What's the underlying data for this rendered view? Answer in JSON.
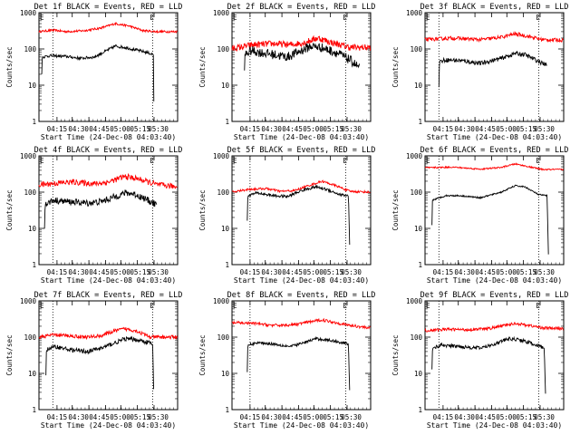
{
  "chart_data": [
    {
      "type": "line",
      "title": "Det 1f BLACK = Events, RED = LLD",
      "xlabel": "Start Time (24-Dec-08 04:03:40)",
      "ylabel": "Counts/sec",
      "x_tick_labels": [
        "04:15",
        "04:30",
        "04:45",
        "05:00",
        "05:15",
        "05:30"
      ],
      "y_tick_labels": [
        "1",
        "10",
        "100",
        "1000"
      ],
      "marker_label": "E",
      "ylim": [
        1,
        1000
      ],
      "log_y": true,
      "series": [
        {
          "color": "#ff0000",
          "points": [
            [
              0,
              300
            ],
            [
              10,
              330
            ],
            [
              20,
              300
            ],
            [
              33,
              320
            ],
            [
              45,
              380
            ],
            [
              55,
              500
            ],
            [
              65,
              430
            ],
            [
              75,
              320
            ],
            [
              85,
              300
            ],
            [
              100,
              300
            ]
          ],
          "noise": 0.03
        },
        {
          "color": "#000000",
          "points": [
            [
              2,
              20
            ],
            [
              2.3,
              60
            ],
            [
              8,
              65
            ],
            [
              20,
              62
            ],
            [
              30,
              55
            ],
            [
              40,
              60
            ],
            [
              50,
              95
            ],
            [
              55,
              120
            ],
            [
              62,
              110
            ],
            [
              75,
              85
            ],
            [
              80,
              75
            ],
            [
              82.5,
              70
            ],
            [
              83,
              1
            ]
          ],
          "noise": 0.04
        }
      ],
      "vlines": [
        10,
        82
      ]
    },
    {
      "type": "line",
      "title": "Det 2f BLACK = Events, RED = LLD",
      "xlabel": "Start Time (24-Dec-08 04:03:40)",
      "ylabel": "Counts/sec",
      "x_tick_labels": [
        "04:15",
        "04:30",
        "04:45",
        "05:00",
        "05:15",
        "05:30"
      ],
      "y_tick_labels": [
        "1",
        "10",
        "100",
        "1000"
      ],
      "marker_label": "E",
      "ylim": [
        1,
        1000
      ],
      "log_y": true,
      "series": [
        {
          "color": "#ff0000",
          "points": [
            [
              0,
              100
            ],
            [
              15,
              130
            ],
            [
              30,
              140
            ],
            [
              42,
              130
            ],
            [
              52,
              150
            ],
            [
              62,
              200
            ],
            [
              72,
              150
            ],
            [
              85,
              110
            ],
            [
              100,
              110
            ]
          ],
          "noise": 0.09
        },
        {
          "color": "#000000",
          "points": [
            [
              9,
              20
            ],
            [
              9.4,
              70
            ],
            [
              14,
              90
            ],
            [
              20,
              80
            ],
            [
              30,
              70
            ],
            [
              40,
              60
            ],
            [
              50,
              90
            ],
            [
              57,
              120
            ],
            [
              64,
              110
            ],
            [
              75,
              80
            ],
            [
              85,
              50
            ],
            [
              92,
              30
            ]
          ],
          "noise": 0.13
        }
      ],
      "vlines": [
        13,
        82
      ]
    },
    {
      "type": "line",
      "title": "Det 3f BLACK = Events, RED = LLD",
      "xlabel": "Start Time (24-Dec-08 04:03:40)",
      "ylabel": "Counts/sec",
      "x_tick_labels": [
        "04:15",
        "04:30",
        "04:45",
        "05:00",
        "05:15",
        "05:30"
      ],
      "y_tick_labels": [
        "1",
        "10",
        "100",
        "1000"
      ],
      "marker_label": "E",
      "ylim": [
        1,
        1000
      ],
      "log_y": true,
      "series": [
        {
          "color": "#ff0000",
          "points": [
            [
              0,
              180
            ],
            [
              20,
              200
            ],
            [
              40,
              180
            ],
            [
              55,
              210
            ],
            [
              65,
              260
            ],
            [
              75,
              220
            ],
            [
              85,
              180
            ],
            [
              100,
              175
            ]
          ],
          "noise": 0.05
        },
        {
          "color": "#000000",
          "points": [
            [
              10,
              10
            ],
            [
              10.4,
              45
            ],
            [
              15,
              50
            ],
            [
              25,
              48
            ],
            [
              40,
              40
            ],
            [
              55,
              55
            ],
            [
              65,
              75
            ],
            [
              72,
              70
            ],
            [
              82,
              45
            ],
            [
              88,
              35
            ]
          ],
          "noise": 0.06
        }
      ],
      "vlines": [
        10,
        82
      ]
    },
    {
      "type": "line",
      "title": "Det 4f BLACK = Events, RED = LLD",
      "xlabel": "Start Time (24-Dec-08 04:03:40)",
      "ylabel": "Counts/sec",
      "x_tick_labels": [
        "04:15",
        "04:30",
        "04:45",
        "05:00",
        "05:15",
        "05:30"
      ],
      "y_tick_labels": [
        "1",
        "10",
        "100",
        "1000"
      ],
      "marker_label": "E",
      "ylim": [
        1,
        1000
      ],
      "log_y": true,
      "series": [
        {
          "color": "#ff0000",
          "points": [
            [
              0,
              160
            ],
            [
              15,
              180
            ],
            [
              25,
              190
            ],
            [
              40,
              170
            ],
            [
              50,
              190
            ],
            [
              62,
              270
            ],
            [
              72,
              230
            ],
            [
              85,
              160
            ],
            [
              100,
              140
            ]
          ],
          "noise": 0.08
        },
        {
          "color": "#000000",
          "points": [
            [
              4,
              12
            ],
            [
              4.4,
              45
            ],
            [
              10,
              60
            ],
            [
              20,
              55
            ],
            [
              35,
              50
            ],
            [
              45,
              55
            ],
            [
              55,
              75
            ],
            [
              62,
              95
            ],
            [
              68,
              90
            ],
            [
              75,
              70
            ],
            [
              85,
              45
            ]
          ],
          "noise": 0.09
        }
      ],
      "vlines": [
        10,
        82
      ]
    },
    {
      "type": "line",
      "title": "Det 5f BLACK = Events, RED = LLD",
      "xlabel": "Start Time (24-Dec-08 04:03:40)",
      "ylabel": "Counts/sec",
      "x_tick_labels": [
        "04:15",
        "04:30",
        "04:45",
        "05:00",
        "05:15",
        "05:30"
      ],
      "y_tick_labels": [
        "1",
        "10",
        "100",
        "1000"
      ],
      "marker_label": "E",
      "ylim": [
        1,
        1000
      ],
      "log_y": true,
      "series": [
        {
          "color": "#ff0000",
          "points": [
            [
              0,
              100
            ],
            [
              12,
              120
            ],
            [
              25,
              125
            ],
            [
              35,
              105
            ],
            [
              45,
              110
            ],
            [
              55,
              150
            ],
            [
              65,
              200
            ],
            [
              75,
              150
            ],
            [
              85,
              105
            ],
            [
              100,
              100
            ]
          ],
          "noise": 0.03
        },
        {
          "color": "#000000",
          "points": [
            [
              11,
              15
            ],
            [
              11.4,
              80
            ],
            [
              18,
              95
            ],
            [
              30,
              80
            ],
            [
              40,
              75
            ],
            [
              50,
              110
            ],
            [
              60,
              140
            ],
            [
              68,
              120
            ],
            [
              78,
              85
            ],
            [
              84,
              80
            ],
            [
              85,
              2
            ]
          ],
          "noise": 0.04
        }
      ],
      "vlines": [
        13,
        82
      ]
    },
    {
      "type": "line",
      "title": "Det 6f BLACK = Events, RED = LLD",
      "xlabel": "Start Time (24-Dec-08 04:03:40)",
      "ylabel": "Counts/sec",
      "x_tick_labels": [
        "04:15",
        "04:30",
        "04:45",
        "05:00",
        "05:15",
        "05:30"
      ],
      "y_tick_labels": [
        "1",
        "10",
        "100",
        "1000"
      ],
      "marker_label": "E",
      "ylim": [
        1,
        1000
      ],
      "log_y": true,
      "series": [
        {
          "color": "#ff0000",
          "points": [
            [
              0,
              470
            ],
            [
              20,
              490
            ],
            [
              40,
              430
            ],
            [
              55,
              480
            ],
            [
              65,
              600
            ],
            [
              75,
              500
            ],
            [
              85,
              420
            ],
            [
              100,
              420
            ]
          ],
          "noise": 0.02
        },
        {
          "color": "#000000",
          "points": [
            [
              5,
              12
            ],
            [
              5.3,
              60
            ],
            [
              15,
              80
            ],
            [
              25,
              80
            ],
            [
              40,
              70
            ],
            [
              55,
              100
            ],
            [
              65,
              150
            ],
            [
              72,
              140
            ],
            [
              82,
              85
            ],
            [
              88,
              80
            ],
            [
              89,
              2
            ]
          ],
          "noise": 0.02
        }
      ],
      "vlines": [
        10,
        82
      ]
    },
    {
      "type": "line",
      "title": "Det 7f BLACK = Events, RED = LLD",
      "xlabel": "Start Time (24-Dec-08 04:03:40)",
      "ylabel": "Counts/sec",
      "x_tick_labels": [
        "04:15",
        "04:30",
        "04:45",
        "05:00",
        "05:15",
        "05:30"
      ],
      "y_tick_labels": [
        "1",
        "10",
        "100",
        "1000"
      ],
      "marker_label": "E",
      "ylim": [
        1,
        1000
      ],
      "log_y": true,
      "series": [
        {
          "color": "#ff0000",
          "points": [
            [
              0,
              100
            ],
            [
              10,
              115
            ],
            [
              20,
              110
            ],
            [
              35,
              100
            ],
            [
              45,
              110
            ],
            [
              55,
              150
            ],
            [
              62,
              170
            ],
            [
              70,
              150
            ],
            [
              80,
              100
            ],
            [
              100,
              100
            ]
          ],
          "noise": 0.05
        },
        {
          "color": "#000000",
          "points": [
            [
              5,
              10
            ],
            [
              5.4,
              45
            ],
            [
              12,
              55
            ],
            [
              22,
              45
            ],
            [
              35,
              40
            ],
            [
              45,
              50
            ],
            [
              55,
              70
            ],
            [
              62,
              90
            ],
            [
              70,
              85
            ],
            [
              80,
              70
            ],
            [
              82,
              60
            ],
            [
              83,
              1
            ]
          ],
          "noise": 0.06
        }
      ],
      "vlines": [
        10,
        82
      ]
    },
    {
      "type": "line",
      "title": "Det 8f BLACK = Events, RED = LLD",
      "xlabel": "Start Time (24-Dec-08 04:03:40)",
      "ylabel": "Counts/sec",
      "x_tick_labels": [
        "04:15",
        "04:30",
        "04:45",
        "05:00",
        "05:15",
        "05:30"
      ],
      "y_tick_labels": [
        "1",
        "10",
        "100",
        "1000"
      ],
      "marker_label": "E",
      "ylim": [
        1,
        1000
      ],
      "log_y": true,
      "series": [
        {
          "color": "#ff0000",
          "points": [
            [
              0,
              250
            ],
            [
              15,
              240
            ],
            [
              30,
              210
            ],
            [
              45,
              220
            ],
            [
              55,
              260
            ],
            [
              65,
              300
            ],
            [
              75,
              250
            ],
            [
              85,
              210
            ],
            [
              100,
              180
            ]
          ],
          "noise": 0.04
        },
        {
          "color": "#000000",
          "points": [
            [
              11,
              10
            ],
            [
              11.4,
              60
            ],
            [
              18,
              70
            ],
            [
              30,
              65
            ],
            [
              42,
              55
            ],
            [
              52,
              70
            ],
            [
              60,
              90
            ],
            [
              68,
              85
            ],
            [
              80,
              70
            ],
            [
              84,
              65
            ],
            [
              85,
              2
            ]
          ],
          "noise": 0.04
        }
      ],
      "vlines": [
        13,
        82
      ]
    },
    {
      "type": "line",
      "title": "Det 9f BLACK = Events, RED = LLD",
      "xlabel": "Start Time (24-Dec-08 04:03:40)",
      "ylabel": "Counts/sec",
      "x_tick_labels": [
        "04:15",
        "04:30",
        "04:45",
        "05:00",
        "05:15",
        "05:30"
      ],
      "y_tick_labels": [
        "1",
        "10",
        "100",
        "1000"
      ],
      "marker_label": "E",
      "ylim": [
        1,
        1000
      ],
      "log_y": true,
      "series": [
        {
          "color": "#ff0000",
          "points": [
            [
              0,
              150
            ],
            [
              15,
              165
            ],
            [
              30,
              160
            ],
            [
              45,
              170
            ],
            [
              55,
              200
            ],
            [
              65,
              240
            ],
            [
              75,
              210
            ],
            [
              85,
              180
            ],
            [
              100,
              170
            ]
          ],
          "noise": 0.04
        },
        {
          "color": "#000000",
          "points": [
            [
              5,
              12
            ],
            [
              5.4,
              50
            ],
            [
              12,
              60
            ],
            [
              25,
              55
            ],
            [
              40,
              50
            ],
            [
              50,
              65
            ],
            [
              60,
              90
            ],
            [
              68,
              85
            ],
            [
              78,
              65
            ],
            [
              86,
              50
            ],
            [
              87,
              2
            ]
          ],
          "noise": 0.05
        }
      ],
      "vlines": [
        10,
        82
      ]
    }
  ]
}
